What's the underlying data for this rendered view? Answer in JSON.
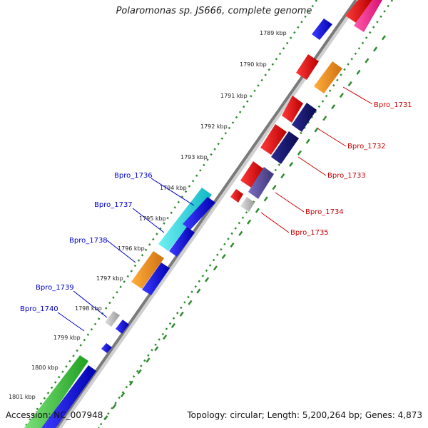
{
  "title": "Polaromonas sp. JS666, complete genome",
  "accession": "Accession: NC_007948",
  "summary": "Topology: circular; Length: 5,200,264 bp; Genes: 4,873",
  "ticks": [
    "1789 kbp",
    "1790 kbp",
    "1791 kbp",
    "1792 kbp",
    "1793 kbp",
    "1794 kbp",
    "1795 kbp",
    "1796 kbp",
    "1797 kbp",
    "1798 kbp",
    "1799 kbp",
    "1800 kbp",
    "1801 kbp"
  ],
  "colors": {
    "forward_label": "#0000cc",
    "reverse_label": "#cc0000",
    "backbone": "#808080",
    "dots": "#2e8b2e"
  },
  "forward_genes": [
    {
      "label": "Bpro_1736",
      "color": "#1ecfd8"
    },
    {
      "label": "Bpro_1737",
      "color": "#1ecfd8"
    },
    {
      "label": "Bpro_1738",
      "color": "#f0901a"
    },
    {
      "label": "Bpro_1739",
      "color": "#b4b4b4"
    },
    {
      "label": "Bpro_1740",
      "color": "#2222ee"
    }
  ],
  "reverse_genes": [
    {
      "label": "Bpro_1731",
      "color": "#f0901a"
    },
    {
      "label": "Bpro_1732",
      "color": "#14146e"
    },
    {
      "label": "Bpro_1733",
      "color": "#14146e"
    },
    {
      "label": "Bpro_1734",
      "color": "#5a4e9a"
    },
    {
      "label": "Bpro_1735",
      "color": "#b4b4b4"
    }
  ]
}
